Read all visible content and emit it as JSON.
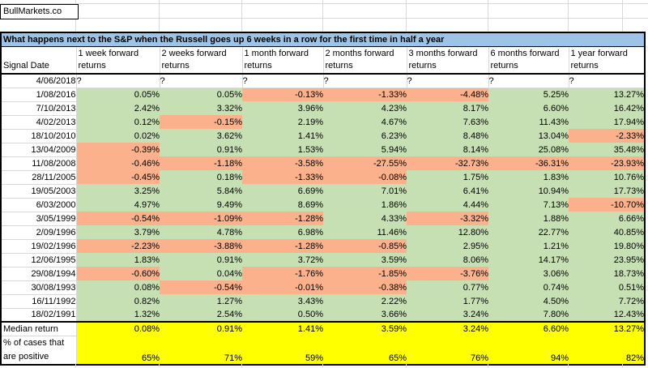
{
  "app": {
    "brand": "BullMarkets.co"
  },
  "table": {
    "title": "What happens next to the S&P when the Russell goes up 6 weeks in a row for the first time in half a year",
    "columns": [
      "Signal Date",
      "1 week forward returns",
      "2 weeks forward returns",
      "1 month forward returns",
      "2 months forward returns",
      "3 months forward returns",
      "6 months forward returns",
      "1 year forward returns"
    ],
    "rows": [
      {
        "date": "4/06/2018",
        "values": [
          "?",
          "?",
          "?",
          "?",
          "?",
          "?",
          "?"
        ],
        "states": [
          "",
          "",
          "",
          "",
          "",
          "",
          ""
        ]
      },
      {
        "date": "1/08/2016",
        "values": [
          "0.05%",
          "0.05%",
          "-0.13%",
          "-1.33%",
          "-4.48%",
          "5.25%",
          "13.27%"
        ],
        "states": [
          "pos",
          "pos",
          "neg",
          "neg",
          "neg",
          "pos",
          "pos"
        ]
      },
      {
        "date": "7/10/2013",
        "values": [
          "2.42%",
          "3.32%",
          "3.96%",
          "4.23%",
          "8.17%",
          "6.60%",
          "16.42%"
        ],
        "states": [
          "pos",
          "pos",
          "pos",
          "pos",
          "pos",
          "pos",
          "pos"
        ]
      },
      {
        "date": "4/02/2013",
        "values": [
          "0.12%",
          "-0.15%",
          "2.19%",
          "4.67%",
          "7.63%",
          "11.43%",
          "17.94%"
        ],
        "states": [
          "pos",
          "neg",
          "pos",
          "pos",
          "pos",
          "pos",
          "pos"
        ]
      },
      {
        "date": "18/10/2010",
        "values": [
          "0.02%",
          "3.62%",
          "1.41%",
          "6.23%",
          "8.48%",
          "13.04%",
          "-2.33%"
        ],
        "states": [
          "pos",
          "pos",
          "pos",
          "pos",
          "pos",
          "pos",
          "neg"
        ]
      },
      {
        "date": "13/04/2009",
        "values": [
          "-0.39%",
          "0.91%",
          "1.53%",
          "5.94%",
          "8.14%",
          "25.08%",
          "35.48%"
        ],
        "states": [
          "neg",
          "pos",
          "pos",
          "pos",
          "pos",
          "pos",
          "pos"
        ]
      },
      {
        "date": "11/08/2008",
        "values": [
          "-0.46%",
          "-1.18%",
          "-3.58%",
          "-27.55%",
          "-32.73%",
          "-36.31%",
          "-23.93%"
        ],
        "states": [
          "neg",
          "neg",
          "neg",
          "neg",
          "neg",
          "neg",
          "neg"
        ]
      },
      {
        "date": "28/11/2005",
        "values": [
          "-0.45%",
          "0.18%",
          "-1.33%",
          "-0.08%",
          "1.75%",
          "1.83%",
          "10.76%"
        ],
        "states": [
          "neg",
          "pos",
          "neg",
          "neg",
          "pos",
          "pos",
          "pos"
        ]
      },
      {
        "date": "19/05/2003",
        "values": [
          "3.25%",
          "5.84%",
          "6.69%",
          "7.01%",
          "6.41%",
          "10.94%",
          "17.73%"
        ],
        "states": [
          "pos",
          "pos",
          "pos",
          "pos",
          "pos",
          "pos",
          "pos"
        ]
      },
      {
        "date": "6/03/2000",
        "values": [
          "4.97%",
          "9.49%",
          "8.69%",
          "1.86%",
          "4.44%",
          "7.13%",
          "-10.70%"
        ],
        "states": [
          "pos",
          "pos",
          "pos",
          "pos",
          "pos",
          "pos",
          "neg"
        ]
      },
      {
        "date": "3/05/1999",
        "values": [
          "-0.54%",
          "-1.09%",
          "-1.28%",
          "4.33%",
          "-3.32%",
          "1.88%",
          "6.66%"
        ],
        "states": [
          "neg",
          "neg",
          "neg",
          "pos",
          "neg",
          "pos",
          "pos"
        ]
      },
      {
        "date": "2/09/1996",
        "values": [
          "3.79%",
          "4.78%",
          "6.98%",
          "11.46%",
          "12.80%",
          "22.77%",
          "40.85%"
        ],
        "states": [
          "pos",
          "pos",
          "pos",
          "pos",
          "pos",
          "pos",
          "pos"
        ]
      },
      {
        "date": "19/02/1996",
        "values": [
          "-2.23%",
          "-3.88%",
          "-1.28%",
          "-0.85%",
          "2.95%",
          "1.21%",
          "19.80%"
        ],
        "states": [
          "neg",
          "neg",
          "neg",
          "neg",
          "pos",
          "pos",
          "pos"
        ]
      },
      {
        "date": "12/06/1995",
        "values": [
          "1.83%",
          "0.91%",
          "3.72%",
          "3.59%",
          "8.06%",
          "14.17%",
          "23.95%"
        ],
        "states": [
          "pos",
          "pos",
          "pos",
          "pos",
          "pos",
          "pos",
          "pos"
        ]
      },
      {
        "date": "29/08/1994",
        "values": [
          "-0.60%",
          "0.04%",
          "-1.76%",
          "-1.85%",
          "-3.76%",
          "3.06%",
          "18.73%"
        ],
        "states": [
          "neg",
          "pos",
          "neg",
          "neg",
          "neg",
          "pos",
          "pos"
        ]
      },
      {
        "date": "30/08/1993",
        "values": [
          "0.08%",
          "-0.54%",
          "-0.01%",
          "-0.38%",
          "0.77%",
          "0.74%",
          "0.51%"
        ],
        "states": [
          "pos",
          "neg",
          "neg",
          "neg",
          "pos",
          "pos",
          "pos"
        ]
      },
      {
        "date": "16/11/1992",
        "values": [
          "0.82%",
          "1.27%",
          "3.43%",
          "2.22%",
          "1.77%",
          "4.50%",
          "7.72%"
        ],
        "states": [
          "pos",
          "pos",
          "pos",
          "pos",
          "pos",
          "pos",
          "pos"
        ]
      },
      {
        "date": "18/02/1991",
        "values": [
          "1.32%",
          "2.54%",
          "0.50%",
          "3.66%",
          "3.24%",
          "7.80%",
          "12.43%"
        ],
        "states": [
          "pos",
          "pos",
          "pos",
          "pos",
          "pos",
          "pos",
          "pos"
        ]
      }
    ],
    "summary": {
      "median_label": "Median return",
      "median_values": [
        "0.08%",
        "0.91%",
        "1.41%",
        "3.59%",
        "3.24%",
        "6.60%",
        "13.27%"
      ],
      "pct_label": "% of cases that are positive",
      "pct_values": [
        "65%",
        "71%",
        "59%",
        "65%",
        "76%",
        "94%",
        "82%"
      ]
    },
    "colors": {
      "positive": "#c6e0b4",
      "negative": "#fbb28c",
      "summary_bg": "#ffff00",
      "title_bg": "#9dc3e6",
      "gridline": "#d9d9d9"
    }
  }
}
